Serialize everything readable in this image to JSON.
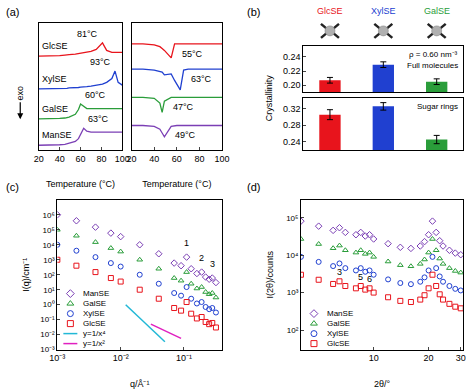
{
  "chart_data": [
    {
      "panel_label": "(a)",
      "type": "line",
      "ylabel": "exo",
      "xlabel": "Temperature (°C)",
      "tick_labels": "x",
      "xlim": [
        20,
        100
      ],
      "xticks": [
        20,
        40,
        60,
        80,
        100
      ],
      "ylim": [
        0,
        13.5
      ],
      "x": [
        20,
        30,
        40,
        45,
        47,
        49,
        55,
        58,
        60,
        63,
        66,
        70,
        75,
        81,
        85,
        90,
        93,
        96,
        100
      ],
      "series": [
        {
          "name": "GlcSE",
          "color": "#e8141c",
          "label": "81°C",
          "values": [
            10,
            10,
            10.05,
            10.1,
            10.1,
            10.15,
            10.2,
            10.25,
            10.3,
            10.35,
            10.4,
            10.5,
            10.7,
            11.4,
            10.6,
            10.4,
            10.4,
            10.4,
            10.4
          ]
        },
        {
          "name": "XylSE",
          "color": "#2040d0",
          "label": "93°C",
          "values": [
            6.5,
            6.5,
            6.5,
            6.55,
            6.55,
            6.6,
            6.6,
            6.65,
            6.7,
            6.7,
            6.75,
            6.8,
            6.9,
            7.0,
            7.2,
            7.6,
            8.4,
            7.2,
            6.9
          ]
        },
        {
          "name": "GalSE",
          "color": "#2a9d3a",
          "label": "60°C",
          "values": [
            3.3,
            3.3,
            3.35,
            3.4,
            3.45,
            3.5,
            3.8,
            4.3,
            4.9,
            4.6,
            4.4,
            4.4,
            4.4,
            4.4,
            4.4,
            4.4,
            4.4,
            4.4,
            4.4
          ]
        },
        {
          "name": "ManSE",
          "color": "#7b3fb5",
          "label": "63°C",
          "values": [
            0.5,
            0.5,
            0.55,
            0.6,
            0.65,
            0.7,
            0.9,
            1.2,
            1.7,
            2.3,
            2.0,
            1.9,
            1.9,
            1.9,
            1.9,
            1.9,
            1.9,
            1.9,
            1.9
          ]
        }
      ]
    },
    {
      "type": "line",
      "xlabel": "Temperature (°C)",
      "tick_labels": "x",
      "xlim": [
        20,
        100
      ],
      "xticks": [
        20,
        40,
        60,
        80,
        100
      ],
      "ylim": [
        0,
        13.5
      ],
      "x": [
        20,
        30,
        40,
        45,
        47,
        49,
        55,
        58,
        60,
        63,
        66,
        70,
        75,
        81,
        85,
        90,
        93,
        96,
        100
      ],
      "series": [
        {
          "color": "#e8141c",
          "label": "55°C",
          "values": [
            11.3,
            11.3,
            11.2,
            11.0,
            10.8,
            10.6,
            9.8,
            11.3,
            11.3,
            11.3,
            11.3,
            11.3,
            11.3,
            11.3,
            11.3,
            11.3,
            11.3,
            11.3,
            11.3
          ]
        },
        {
          "color": "#2040d0",
          "label": "63°C",
          "values": [
            8.6,
            8.6,
            8.5,
            8.4,
            8.3,
            8.0,
            8.1,
            7.4,
            7.0,
            6.4,
            8.5,
            8.6,
            8.6,
            8.6,
            8.6,
            8.6,
            8.6,
            8.6,
            8.6
          ]
        },
        {
          "color": "#2a9d3a",
          "label": "47°C",
          "values": [
            5.6,
            5.6,
            5.5,
            5.0,
            4.0,
            5.2,
            5.6,
            5.6,
            5.6,
            5.6,
            5.6,
            5.6,
            5.6,
            5.6,
            5.6,
            5.6,
            5.6,
            5.6,
            5.6
          ]
        },
        {
          "color": "#7b3fb5",
          "label": "49°C",
          "values": [
            2.6,
            2.6,
            2.5,
            2.2,
            1.8,
            1.4,
            2.5,
            2.6,
            2.6,
            2.6,
            2.6,
            2.6,
            2.6,
            2.6,
            2.6,
            2.6,
            2.6,
            2.6,
            2.6
          ]
        }
      ]
    },
    {
      "panel_label": "(b)",
      "type": "bar",
      "ylabel": "Crystallinity",
      "title": "Full molecules",
      "annotations": [
        "ρ = 0.60 nm⁻³"
      ],
      "tick_labels": "y",
      "categories": [
        "GlcSE",
        "XylSE",
        "GalSE"
      ],
      "colors": [
        "#e8141c",
        "#2040d0",
        "#2a9d3a"
      ],
      "values": [
        0.207,
        0.229,
        0.205
      ],
      "errors": [
        0.004,
        0.004,
        0.004
      ],
      "ylim": [
        0.19,
        0.255
      ],
      "yticks": [
        {
          "value": 0.2,
          "label": "0.20"
        },
        0.22,
        0.24
      ]
    },
    {
      "type": "bar",
      "title": "Sugar rings",
      "tick_labels": "y",
      "categories": [
        "GlcSE",
        "XylSE",
        "GalSE"
      ],
      "colors": [
        "#e8141c",
        "#2040d0",
        "#2a9d3a"
      ],
      "values": [
        0.305,
        0.325,
        0.245
      ],
      "errors": [
        0.012,
        0.009,
        0.01
      ],
      "ylim": [
        0.22,
        0.345
      ],
      "yticks": [
        0.24,
        0.28,
        0.32
      ]
    },
    {
      "panel_label": "(c)",
      "type": "scatter",
      "log": true,
      "xlabel": "q/Å⁻¹",
      "ylabel": "I(q)/cm⁻¹",
      "legend": "lower left",
      "xlim": [
        0.001,
        0.4
      ],
      "xticks": [
        {
          "value": 0.001,
          "label": "10⁻³"
        },
        {
          "value": 0.01,
          "label": "10⁻²"
        },
        {
          "value": 0.1,
          "label": "10⁻¹"
        }
      ],
      "ylim": [
        0.001,
        10000000
      ],
      "yticks": [
        {
          "value": 0.001,
          "label": "10⁻³"
        },
        {
          "value": 0.01,
          "label": "10⁻²"
        },
        {
          "value": 0.1,
          "label": "10⁻¹"
        },
        {
          "value": 1,
          "label": "10⁰"
        },
        {
          "value": 10,
          "label": "10¹"
        },
        {
          "value": 100,
          "label": "10²"
        },
        {
          "value": 1000,
          "label": "10³"
        },
        {
          "value": 10000,
          "label": "10⁴"
        },
        {
          "value": 100000,
          "label": "10⁵"
        },
        {
          "value": 1000000,
          "label": "10⁶"
        }
      ],
      "x": [
        0.001,
        0.002,
        0.004,
        0.007,
        0.01,
        0.02,
        0.04,
        0.07,
        0.09,
        0.11,
        0.13,
        0.16,
        0.19,
        0.22,
        0.25,
        0.28,
        0.32
      ],
      "series": [
        {
          "name": "ManSE",
          "color": "#7b3fb5",
          "marker": "diamond-open",
          "values": [
            1000000,
            400000,
            150000,
            60000,
            35000,
            10000,
            2500,
            600,
            400,
            1500,
            250,
            120,
            150,
            70,
            50,
            60,
            30
          ]
        },
        {
          "name": "GalSE",
          "color": "#2a9d3a",
          "marker": "triangle-up-open",
          "values": [
            100000,
            40000,
            15000,
            6000,
            3500,
            1000,
            250,
            60,
            40,
            150,
            25,
            12,
            15,
            7,
            5,
            6,
            3
          ]
        },
        {
          "name": "XylSE",
          "color": "#2040d0",
          "marker": "circle-open",
          "values": [
            10000,
            4000,
            1500,
            600,
            350,
            100,
            25,
            6,
            4,
            15,
            2.5,
            1.2,
            1.5,
            0.7,
            0.5,
            0.6,
            0.3
          ]
        },
        {
          "name": "GlcSE",
          "color": "#e8141c",
          "marker": "square-open",
          "values": [
            1000,
            400,
            150,
            60,
            35,
            10,
            2.5,
            0.6,
            0.4,
            1.5,
            0.25,
            0.12,
            0.15,
            0.07,
            0.05,
            0.06,
            0.03
          ]
        },
        {
          "name": "y=1/x⁴",
          "type": "line",
          "color": "#22b8d6",
          "x": [
            0.012,
            0.05
          ],
          "values": [
            1,
            0.0033
          ]
        },
        {
          "name": "y=1/x²",
          "type": "line",
          "color": "#e020c0",
          "x": [
            0.03,
            0.09
          ],
          "values": [
            0.05,
            0.0056
          ]
        }
      ],
      "annotations": [
        {
          "text": "1",
          "x": 0.11
        },
        {
          "text": "2",
          "x": 0.19
        },
        {
          "text": "3",
          "x": 0.28
        }
      ]
    },
    {
      "panel_label": "(d)",
      "type": "scatter",
      "log": true,
      "xlabel": "2θ/°",
      "ylabel": "I(2θ)/counts",
      "legend": "lower left",
      "xlim": [
        4,
        31
      ],
      "xticks": [
        10,
        20,
        30
      ],
      "ylim": [
        30,
        300000
      ],
      "yticks": [
        {
          "value": 100,
          "label": "10²"
        },
        {
          "value": 1000,
          "label": "10³"
        },
        {
          "value": 10000,
          "label": "10⁴"
        },
        {
          "value": 100000,
          "label": "10⁵"
        }
      ],
      "x": [
        4,
        5,
        6,
        6.5,
        7,
        8,
        8.5,
        9,
        9.5,
        10,
        12,
        14,
        16,
        18,
        19,
        20,
        21,
        22,
        23,
        24,
        26,
        28,
        30
      ],
      "series": [
        {
          "name": "ManSE",
          "color": "#7b3fb5",
          "marker": "diamond-open",
          "values": [
            81000,
            59400,
            45900,
            54000,
            40500,
            35100,
            40500,
            32400,
            35100,
            27000,
            20250,
            16200,
            15120,
            17550,
            22950,
            35100,
            81000,
            40500,
            24300,
            17550,
            13500,
            11340,
            10260
          ]
        },
        {
          "name": "GalSE",
          "color": "#2a9d3a",
          "marker": "triangle-up-open",
          "values": [
            27000,
            19800,
            15300,
            18000,
            13500,
            11700,
            13500,
            10800,
            11700,
            9000,
            6750,
            5400,
            5040,
            5850,
            7650,
            11700,
            27000,
            13500,
            8100,
            5850,
            4500,
            3780,
            3420
          ]
        },
        {
          "name": "XylSE",
          "color": "#2040d0",
          "marker": "circle-open",
          "values": [
            9000,
            6600,
            5100,
            6000,
            4500,
            3900,
            4500,
            3600,
            3900,
            3000,
            2250,
            1800,
            1680,
            1950,
            2550,
            3900,
            9000,
            4500,
            2700,
            1950,
            1500,
            1260,
            1140
          ]
        },
        {
          "name": "GlcSE",
          "color": "#e8141c",
          "marker": "square-open",
          "values": [
            3000,
            2200,
            1700,
            2000,
            1500,
            1300,
            1500,
            1200,
            1300,
            1000,
            750,
            600,
            560,
            650,
            850,
            1300,
            3000,
            1500,
            900,
            650,
            500,
            420,
            380
          ]
        }
      ],
      "vlines": [
        17,
        25
      ],
      "annotations": [
        {
          "text": "3",
          "x": 6.5
        },
        {
          "text": "5",
          "x": 8.5
        },
        {
          "text": "6",
          "x": 9.5
        }
      ]
    }
  ]
}
